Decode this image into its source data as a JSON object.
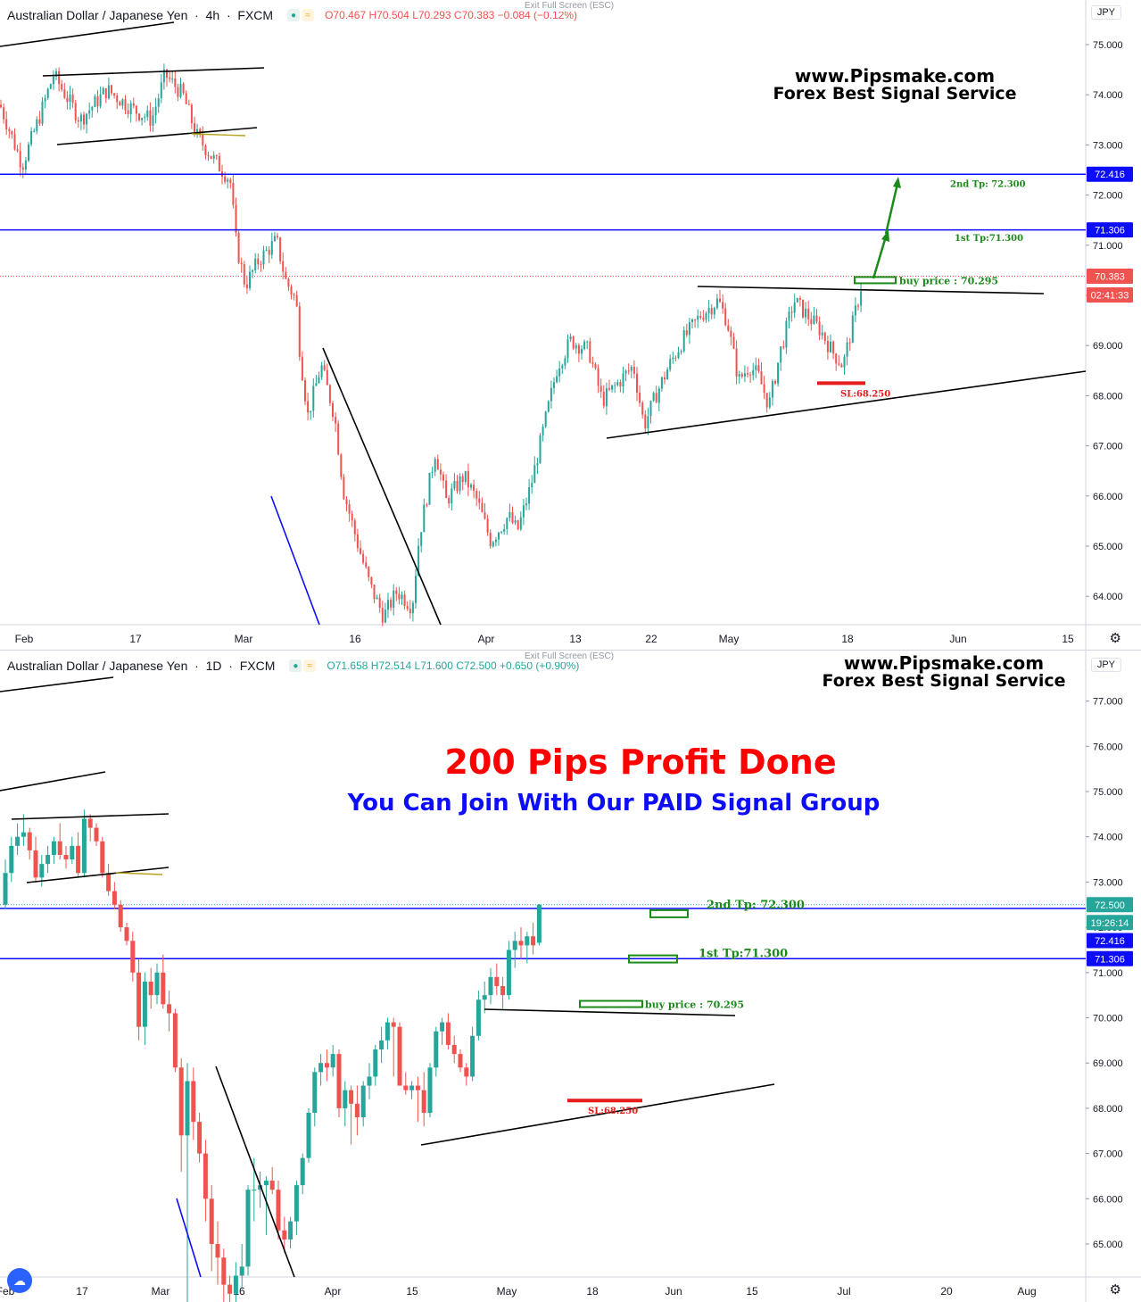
{
  "charts": [
    {
      "symbol": "Australian Dollar / Japanese Yen",
      "timeframe": "4h",
      "source": "FXCM",
      "ohlc": {
        "o": "O70.467",
        "h": "H70.504",
        "l": "L70.293",
        "c": "C70.383",
        "chg": "−0.084 (−0.12%)"
      },
      "exit_fullscreen": "Exit Full Screen (ESC)",
      "currency": "JPY",
      "watermark": [
        "www.Pipsmake.com",
        "Forex Best Signal Service"
      ],
      "annotations": {
        "tp2": "2nd Tp: 72.300",
        "tp1": "1st Tp:71.300",
        "buy": "buy price : 70.295",
        "sl": "SL:68.250"
      },
      "price_tags": {
        "level2": "72.416",
        "level1": "71.306",
        "last": "70.383",
        "countdown": "02:41:33"
      },
      "x_labels": [
        "Feb",
        "17",
        "Mar",
        "16",
        "Apr",
        "13",
        "22",
        "May",
        "18",
        "Jun",
        "15"
      ]
    },
    {
      "symbol": "Australian Dollar / Japanese Yen",
      "timeframe": "1D",
      "source": "FXCM",
      "ohlc": {
        "o": "O71.658",
        "h": "H72.514",
        "l": "L71.600",
        "c": "C72.500",
        "chg": "+0.650 (+0.90%)"
      },
      "exit_fullscreen": "Exit Full Screen (ESC)",
      "currency": "JPY",
      "watermark": [
        "www.Pipsmake.com",
        "Forex Best Signal Service"
      ],
      "headline": "200 Pips Profit Done",
      "subheadline": "You Can Join With Our PAID Signal Group",
      "annotations": {
        "tp2": "2nd Tp: 72.300",
        "tp1": "1st Tp:71.300",
        "buy": "buy price : 70.295",
        "sl": "SL:68.250"
      },
      "price_tags": {
        "last": "72.500",
        "countdown": "19:26:14",
        "level2": "72.416",
        "level1": "71.306"
      },
      "x_labels": [
        "Feb",
        "17",
        "Mar",
        "16",
        "Apr",
        "15",
        "May",
        "18",
        "Jun",
        "15",
        "Jul",
        "20",
        "Aug"
      ]
    }
  ],
  "chart_data": [
    {
      "type": "candlestick",
      "title": "Australian Dollar / Japanese Yen · 4h · FXCM",
      "y_ticks": [
        64,
        65,
        66,
        67,
        68,
        69,
        70,
        71,
        72,
        73,
        74,
        75
      ],
      "ylim": [
        63.4,
        75.9
      ],
      "horizontal_levels": [
        72.416,
        71.306
      ],
      "last_price": 70.383,
      "trade": {
        "buy": 70.295,
        "tp1": 71.3,
        "tp2": 72.3,
        "sl": 68.25
      },
      "price_path": [
        [
          0,
          73.8
        ],
        [
          25,
          72.6
        ],
        [
          45,
          73.6
        ],
        [
          60,
          74.4
        ],
        [
          90,
          73.5
        ],
        [
          120,
          74.1
        ],
        [
          150,
          73.7
        ],
        [
          170,
          73.5
        ],
        [
          185,
          74.4
        ],
        [
          205,
          74.0
        ],
        [
          220,
          73.2
        ],
        [
          240,
          72.7
        ],
        [
          258,
          72.3
        ],
        [
          265,
          71.0
        ],
        [
          275,
          70.2
        ],
        [
          290,
          70.7
        ],
        [
          310,
          71.1
        ],
        [
          320,
          70.3
        ],
        [
          332,
          69.9
        ],
        [
          336,
          68.9
        ],
        [
          345,
          67.6
        ],
        [
          360,
          68.6
        ],
        [
          375,
          67.6
        ],
        [
          385,
          66.1
        ],
        [
          400,
          65.1
        ],
        [
          415,
          64.2
        ],
        [
          430,
          63.6
        ],
        [
          445,
          64.1
        ],
        [
          462,
          63.8
        ],
        [
          470,
          65.2
        ],
        [
          488,
          66.9
        ],
        [
          500,
          65.9
        ],
        [
          520,
          66.4
        ],
        [
          535,
          65.9
        ],
        [
          550,
          65.1
        ],
        [
          570,
          65.6
        ],
        [
          580,
          65.3
        ],
        [
          595,
          66.2
        ],
        [
          610,
          67.4
        ],
        [
          625,
          68.6
        ],
        [
          640,
          69.1
        ],
        [
          660,
          68.9
        ],
        [
          675,
          67.9
        ],
        [
          690,
          68.2
        ],
        [
          710,
          68.6
        ],
        [
          722,
          67.4
        ],
        [
          735,
          68.0
        ],
        [
          750,
          68.6
        ],
        [
          765,
          69.1
        ],
        [
          785,
          69.6
        ],
        [
          805,
          69.9
        ],
        [
          815,
          69.5
        ],
        [
          828,
          68.3
        ],
        [
          840,
          68.6
        ],
        [
          850,
          68.4
        ],
        [
          862,
          67.8
        ],
        [
          875,
          68.9
        ],
        [
          890,
          69.9
        ],
        [
          905,
          69.6
        ],
        [
          920,
          69.3
        ],
        [
          932,
          68.9
        ],
        [
          945,
          68.6
        ],
        [
          958,
          69.6
        ],
        [
          968,
          70.4
        ]
      ]
    },
    {
      "type": "candlestick",
      "title": "Australian Dollar / Japanese Yen · 1D · FXCM",
      "y_ticks": [
        65,
        66,
        67,
        68,
        69,
        70,
        71,
        72,
        73,
        74,
        75,
        76,
        77
      ],
      "ylim": [
        64.4,
        77.9
      ],
      "horizontal_levels": [
        72.416,
        71.306
      ],
      "last_price": 72.5,
      "trade": {
        "buy": 70.295,
        "tp1": 71.3,
        "tp2": 72.3,
        "sl": 68.25
      },
      "candles": [
        [
          72.5,
          73.5,
          72.4,
          73.2
        ],
        [
          73.2,
          74.0,
          73.0,
          73.8
        ],
        [
          73.8,
          74.3,
          73.6,
          74.0
        ],
        [
          74.0,
          74.5,
          73.8,
          74.1
        ],
        [
          74.1,
          74.2,
          73.5,
          73.7
        ],
        [
          73.7,
          74.0,
          73.0,
          73.1
        ],
        [
          73.1,
          73.6,
          72.9,
          73.4
        ],
        [
          73.4,
          73.8,
          73.2,
          73.6
        ],
        [
          73.6,
          74.0,
          73.4,
          73.9
        ],
        [
          73.9,
          74.3,
          73.5,
          73.6
        ],
        [
          73.6,
          73.8,
          73.3,
          73.5
        ],
        [
          73.5,
          74.0,
          73.4,
          73.8
        ],
        [
          73.8,
          74.1,
          73.1,
          73.2
        ],
        [
          73.2,
          74.6,
          73.1,
          74.4
        ],
        [
          74.4,
          74.5,
          73.9,
          74.2
        ],
        [
          74.2,
          74.3,
          73.8,
          73.9
        ],
        [
          73.9,
          74.0,
          73.1,
          73.2
        ],
        [
          73.2,
          73.4,
          72.7,
          72.8
        ],
        [
          72.8,
          73.0,
          72.4,
          72.5
        ],
        [
          72.5,
          72.6,
          71.9,
          72.0
        ],
        [
          72.0,
          72.1,
          71.6,
          71.7
        ],
        [
          71.7,
          71.9,
          70.8,
          71.0
        ],
        [
          71.0,
          71.3,
          69.5,
          69.8
        ],
        [
          69.8,
          71.0,
          69.4,
          70.8
        ],
        [
          70.8,
          71.1,
          70.2,
          70.5
        ],
        [
          70.5,
          71.2,
          70.3,
          71.0
        ],
        [
          71.0,
          71.4,
          70.2,
          70.3
        ],
        [
          70.3,
          70.6,
          69.7,
          70.1
        ],
        [
          70.1,
          70.2,
          68.8,
          68.9
        ],
        [
          68.9,
          69.1,
          66.6,
          67.4
        ],
        [
          67.4,
          69.0,
          63.7,
          68.6
        ],
        [
          68.6,
          68.9,
          67.3,
          67.7
        ],
        [
          67.7,
          67.9,
          66.8,
          67.0
        ],
        [
          67.0,
          67.3,
          65.5,
          66.0
        ],
        [
          66.0,
          66.3,
          64.4,
          65.0
        ],
        [
          65.0,
          65.5,
          64.1,
          64.7
        ],
        [
          64.7,
          64.9,
          63.7,
          64.1
        ],
        [
          64.1,
          64.3,
          63.5,
          63.9
        ],
        [
          63.9,
          64.6,
          63.6,
          64.3
        ],
        [
          64.3,
          65.0,
          64.0,
          64.5
        ],
        [
          64.5,
          66.3,
          64.3,
          66.2
        ],
        [
          66.2,
          66.9,
          65.5,
          66.2
        ],
        [
          66.2,
          66.6,
          65.8,
          66.3
        ],
        [
          66.3,
          66.5,
          65.2,
          66.4
        ],
        [
          66.4,
          66.7,
          66.1,
          66.2
        ],
        [
          66.2,
          66.4,
          65.1,
          65.3
        ],
        [
          65.3,
          65.6,
          64.8,
          65.1
        ],
        [
          65.1,
          65.6,
          64.9,
          65.5
        ],
        [
          65.5,
          66.4,
          65.2,
          66.3
        ],
        [
          66.3,
          67.0,
          66.1,
          66.9
        ],
        [
          66.9,
          68.0,
          66.8,
          67.9
        ],
        [
          67.9,
          68.9,
          67.6,
          68.8
        ],
        [
          68.8,
          69.2,
          68.5,
          69.0
        ],
        [
          69.0,
          69.3,
          68.6,
          68.9
        ],
        [
          68.9,
          69.4,
          68.7,
          69.2
        ],
        [
          69.2,
          69.3,
          67.8,
          68.0
        ],
        [
          68.0,
          68.6,
          67.6,
          68.4
        ],
        [
          68.4,
          68.5,
          67.2,
          68.1
        ],
        [
          68.1,
          68.5,
          67.4,
          67.8
        ],
        [
          67.8,
          68.6,
          67.6,
          68.5
        ],
        [
          68.5,
          69.0,
          68.2,
          68.7
        ],
        [
          68.7,
          69.4,
          68.5,
          69.3
        ],
        [
          69.3,
          69.8,
          69.0,
          69.5
        ],
        [
          69.5,
          70.0,
          69.3,
          69.9
        ],
        [
          69.9,
          70.0,
          68.7,
          69.8
        ],
        [
          69.8,
          69.9,
          68.6,
          68.5
        ],
        [
          68.5,
          68.8,
          68.3,
          68.4
        ],
        [
          68.4,
          68.6,
          68.2,
          68.5
        ],
        [
          68.5,
          68.7,
          67.7,
          68.4
        ],
        [
          68.4,
          68.8,
          67.6,
          67.9
        ],
        [
          67.9,
          69.0,
          67.8,
          68.9
        ],
        [
          68.9,
          69.8,
          68.7,
          69.7
        ],
        [
          69.7,
          70.0,
          69.4,
          69.9
        ],
        [
          69.9,
          70.1,
          69.3,
          69.4
        ],
        [
          69.4,
          69.6,
          69.0,
          69.2
        ],
        [
          69.2,
          69.3,
          68.8,
          68.9
        ],
        [
          68.9,
          69.0,
          68.5,
          68.7
        ],
        [
          68.7,
          69.8,
          68.6,
          69.6
        ],
        [
          69.6,
          70.6,
          69.5,
          70.4
        ],
        [
          70.4,
          70.8,
          70.1,
          70.5
        ],
        [
          70.5,
          71.1,
          70.3,
          70.9
        ],
        [
          70.9,
          71.2,
          70.5,
          70.7
        ],
        [
          70.7,
          70.9,
          70.2,
          70.5
        ],
        [
          70.5,
          71.7,
          70.4,
          71.5
        ],
        [
          71.5,
          71.9,
          71.1,
          71.7
        ],
        [
          71.7,
          72.0,
          71.3,
          71.6
        ],
        [
          71.6,
          71.9,
          71.2,
          71.8
        ],
        [
          71.8,
          72.1,
          71.4,
          71.6
        ],
        [
          71.658,
          72.514,
          71.6,
          72.5
        ]
      ]
    }
  ]
}
